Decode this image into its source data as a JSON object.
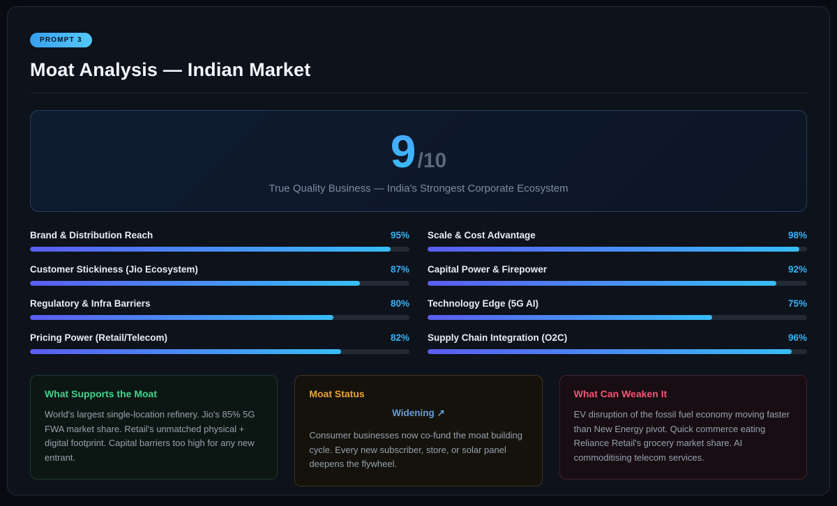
{
  "header": {
    "badge": "PROMPT 3",
    "title": "Moat Analysis — Indian Market"
  },
  "score": {
    "value": "9",
    "max": "/10",
    "subtitle": "True Quality Business — India's Strongest Corporate Ecosystem"
  },
  "metrics": {
    "left": [
      {
        "label": "Brand & Distribution Reach",
        "value": 95,
        "display": "95%"
      },
      {
        "label": "Customer Stickiness (Jio Ecosystem)",
        "value": 87,
        "display": "87%"
      },
      {
        "label": "Regulatory & Infra Barriers",
        "value": 80,
        "display": "80%"
      },
      {
        "label": "Pricing Power (Retail/Telecom)",
        "value": 82,
        "display": "82%"
      }
    ],
    "right": [
      {
        "label": "Scale & Cost Advantage",
        "value": 98,
        "display": "98%"
      },
      {
        "label": "Capital Power & Firepower",
        "value": 92,
        "display": "92%"
      },
      {
        "label": "Technology Edge (5G AI)",
        "value": 75,
        "display": "75%"
      },
      {
        "label": "Supply Chain Integration (O2C)",
        "value": 96,
        "display": "96%"
      }
    ]
  },
  "insights": {
    "supports": {
      "title": "What Supports the Moat",
      "body": "World's largest single-location refinery. Jio's 85% 5G FWA market share. Retail's unmatched physical + digital footprint. Capital barriers too high for any new entrant.",
      "accent_color": "#3fd68c"
    },
    "status": {
      "title": "Moat Status",
      "status_label": "Widening ↗",
      "body": "Consumer businesses now co-fund the moat building cycle. Every new subscriber, store, or solar panel deepens the flywheel.",
      "accent_color": "#f0a32e"
    },
    "weaken": {
      "title": "What Can Weaken It",
      "body": "EV disruption of the fossil fuel economy moving faster than New Energy pivot. Quick commerce eating Reliance Retail's grocery market share. AI commoditising telecom services.",
      "accent_color": "#f25677"
    }
  },
  "colors": {
    "background": "#080b11",
    "card_background": "#0d121b",
    "accent_blue": "#35b3f5",
    "bar_gradient_start": "#5b5df0",
    "bar_gradient_end": "#38bdf8"
  },
  "chart_data": {
    "type": "bar",
    "title": "Moat Analysis — Indian Market",
    "subtitle": "True Quality Business — India's Strongest Corporate Ecosystem",
    "overall_score": 9,
    "overall_score_max": 10,
    "categories": [
      "Brand & Distribution Reach",
      "Customer Stickiness (Jio Ecosystem)",
      "Regulatory & Infra Barriers",
      "Pricing Power (Retail/Telecom)",
      "Scale & Cost Advantage",
      "Capital Power & Firepower",
      "Technology Edge (5G AI)",
      "Supply Chain Integration (O2C)"
    ],
    "values": [
      95,
      87,
      80,
      82,
      98,
      92,
      75,
      96
    ],
    "value_unit": "%",
    "xlim": [
      0,
      100
    ],
    "layout": "two-column horizontal progress bars, labels above bars, values right-aligned"
  }
}
